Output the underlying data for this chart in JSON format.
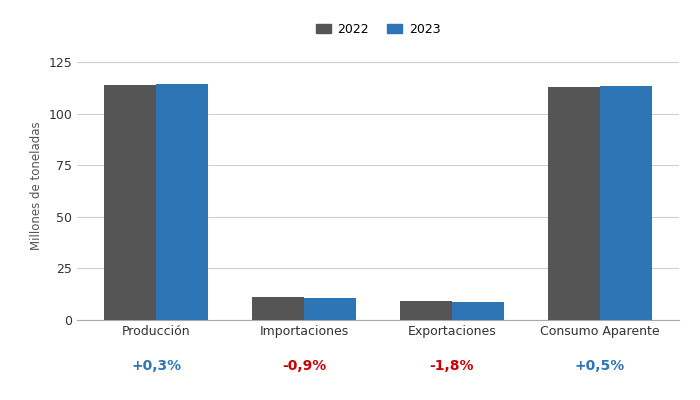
{
  "categories": [
    "Producción",
    "Importaciones",
    "Exportaciones",
    "Consumo Aparente"
  ],
  "values_2022": [
    114.0,
    11.0,
    9.0,
    113.0
  ],
  "values_2023": [
    114.3,
    10.9,
    8.84,
    113.6
  ],
  "color_2022": "#555555",
  "color_2023": "#2e75b6",
  "ylabel": "Millones de toneladas",
  "ylim": [
    0,
    130
  ],
  "yticks": [
    0,
    25,
    50,
    75,
    100,
    125
  ],
  "legend_labels": [
    "2022",
    "2023"
  ],
  "pct_labels": [
    "+0,3%",
    "-0,9%",
    "-1,8%",
    "+0,5%"
  ],
  "pct_colors": [
    "#2e75b6",
    "#cc0000",
    "#cc0000",
    "#2e75b6"
  ],
  "background_color": "#ffffff",
  "bar_width": 0.35,
  "grid_color": "#d0d0d0"
}
